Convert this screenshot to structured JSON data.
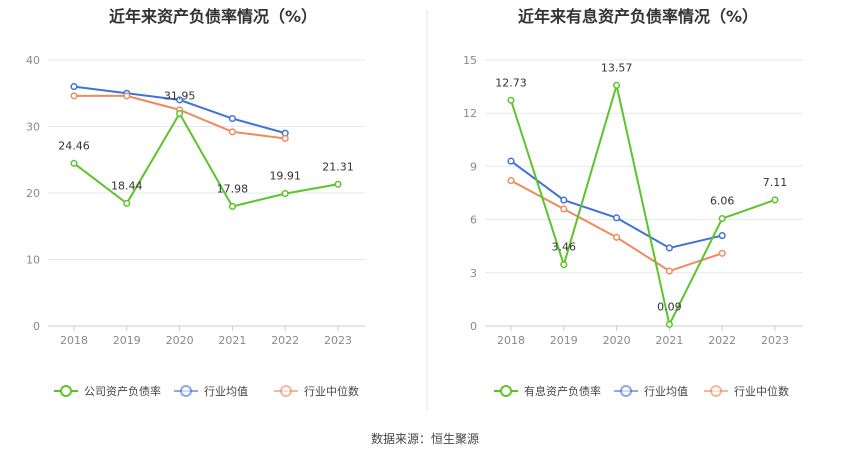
{
  "colors": {
    "company": "#5cc42a",
    "industry_avg": "#3f73d8",
    "industry_median": "#f08a5d",
    "grid": "#e6e8ef",
    "divider": "#e6e6e6"
  },
  "chart_data": [
    {
      "type": "line",
      "title": "近年来资产负债率情况（%）",
      "categories": [
        "2018",
        "2019",
        "2020",
        "2021",
        "2022",
        "2023"
      ],
      "ylim": [
        0,
        40
      ],
      "yticks": [
        "0",
        "10",
        "20",
        "30",
        "40"
      ],
      "grid": true,
      "legend_position": "bottom",
      "series": [
        {
          "name": "公司资产负债率",
          "color_key": "company",
          "values": [
            24.46,
            18.44,
            31.95,
            17.98,
            19.91,
            21.31
          ],
          "labels": [
            "24.46",
            "18.44",
            "31.95",
            "17.98",
            "19.91",
            "21.31"
          ]
        },
        {
          "name": "行业均值",
          "color_key": "industry_avg",
          "values": [
            36.0,
            35.0,
            34.0,
            31.2,
            29.0,
            null
          ]
        },
        {
          "name": "行业中位数",
          "color_key": "industry_median",
          "values": [
            34.6,
            34.6,
            32.5,
            29.2,
            28.2,
            null
          ]
        }
      ]
    },
    {
      "type": "line",
      "title": "近年来有息资产负债率情况（%）",
      "categories": [
        "2018",
        "2019",
        "2020",
        "2021",
        "2022",
        "2023"
      ],
      "ylim": [
        0,
        15
      ],
      "yticks": [
        "0",
        "3",
        "6",
        "9",
        "12",
        "15"
      ],
      "grid": true,
      "legend_position": "bottom",
      "series": [
        {
          "name": "有息资产负债率",
          "color_key": "company",
          "values": [
            12.73,
            3.46,
            13.57,
            0.09,
            6.06,
            7.11
          ],
          "labels": [
            "12.73",
            "3.46",
            "13.57",
            "0.09",
            "6.06",
            "7.11"
          ]
        },
        {
          "name": "行业均值",
          "color_key": "industry_avg",
          "values": [
            9.3,
            7.1,
            6.1,
            4.4,
            5.1,
            null
          ]
        },
        {
          "name": "行业中位数",
          "color_key": "industry_median",
          "values": [
            8.2,
            6.6,
            5.0,
            3.1,
            4.1,
            null
          ]
        }
      ]
    }
  ],
  "footer": "数据来源：恒生聚源"
}
